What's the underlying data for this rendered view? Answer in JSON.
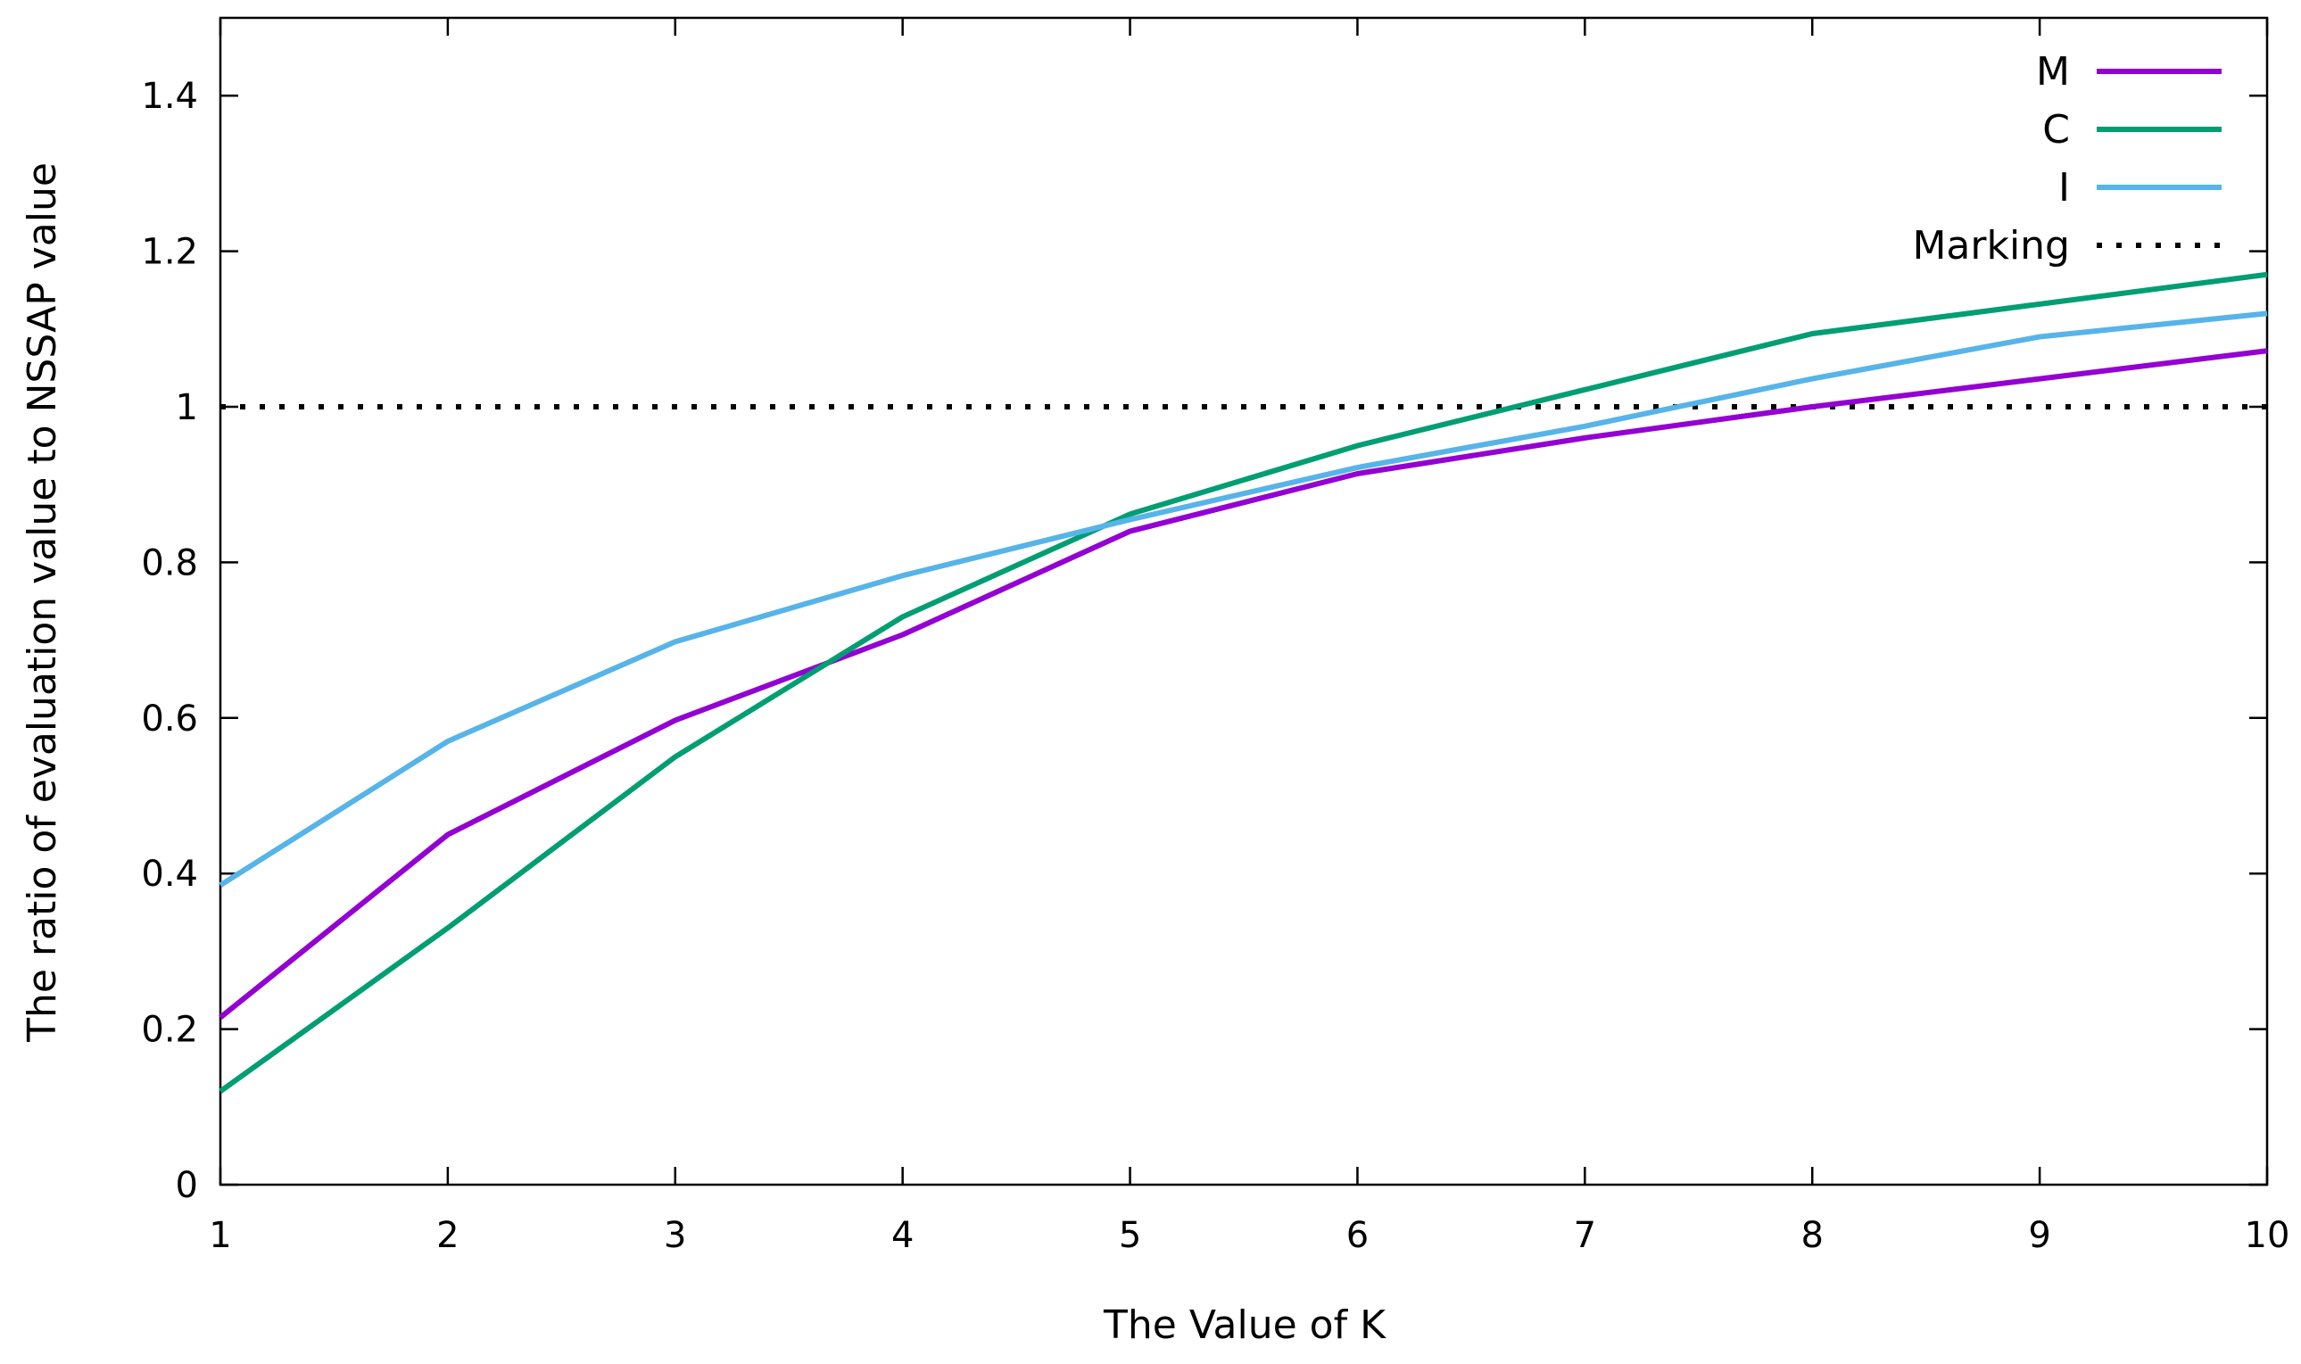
{
  "chart_data": {
    "type": "line",
    "title": "",
    "xlabel": "The Value of K",
    "ylabel": "The ratio of evaluation value to NSSAP value",
    "xlim": [
      1,
      10
    ],
    "ylim": [
      0,
      1.5
    ],
    "x": [
      1,
      2,
      3,
      4,
      5,
      6,
      7,
      8,
      9,
      10
    ],
    "x_ticks": [
      1,
      2,
      3,
      4,
      5,
      6,
      7,
      8,
      9,
      10
    ],
    "x_tick_labels": [
      "1",
      "2",
      "3",
      "4",
      "5",
      "6",
      "7",
      "8",
      "9",
      "10"
    ],
    "y_ticks": [
      0,
      0.2,
      0.4,
      0.6,
      0.8,
      1.0,
      1.2,
      1.4
    ],
    "y_tick_labels": [
      "0",
      "0.2",
      "0.4",
      "0.6",
      "0.8",
      "1",
      "1.2",
      "1.4"
    ],
    "grid": false,
    "legend_position": "top-right",
    "series": [
      {
        "name": "M",
        "color": "#9400d3",
        "style": "solid",
        "values": [
          0.215,
          0.45,
          0.597,
          0.707,
          0.84,
          0.914,
          0.96,
          1.0,
          1.036,
          1.072
        ]
      },
      {
        "name": "C",
        "color": "#009e73",
        "style": "solid",
        "values": [
          0.12,
          0.33,
          0.55,
          0.73,
          0.862,
          0.95,
          1.022,
          1.094,
          1.132,
          1.17
        ]
      },
      {
        "name": "I",
        "color": "#56b4e9",
        "style": "solid",
        "values": [
          0.385,
          0.57,
          0.698,
          0.783,
          0.855,
          0.922,
          0.975,
          1.036,
          1.09,
          1.12
        ]
      }
    ],
    "reference_line": {
      "name": "Marking",
      "y": 1.0,
      "color": "#000000",
      "style": "dotted"
    }
  }
}
